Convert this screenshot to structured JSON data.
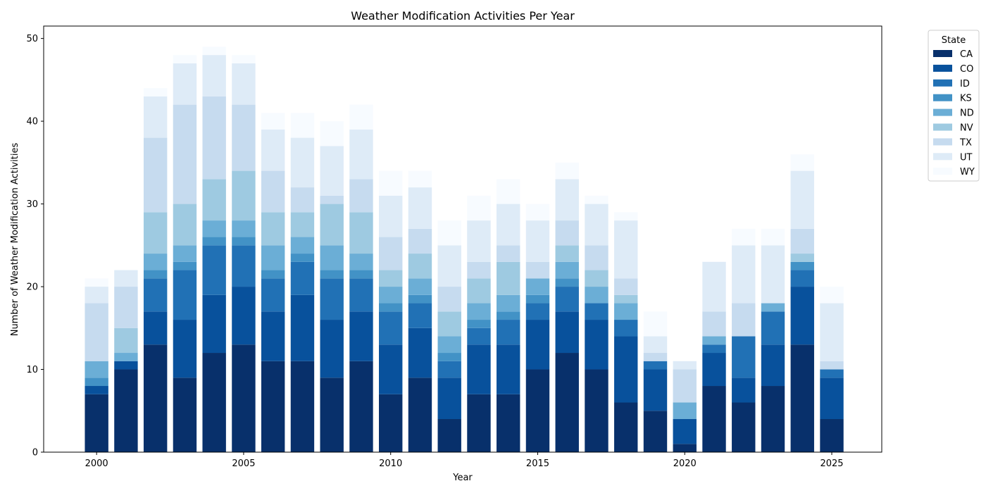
{
  "chart_data": {
    "type": "bar",
    "stacked": true,
    "title": "Weather Modification Activities Per Year",
    "xlabel": "Year",
    "ylabel": "Number of Weather Modification Activities",
    "xlim": [
      1998.2,
      2026.7
    ],
    "ylim": [
      0,
      51.5
    ],
    "xticks": [
      2000,
      2005,
      2010,
      2015,
      2020,
      2025
    ],
    "yticks": [
      0,
      10,
      20,
      30,
      40,
      50
    ],
    "legend_title": "State",
    "legend_position": "outside-top-right",
    "categories": [
      2000,
      2001,
      2002,
      2003,
      2004,
      2005,
      2006,
      2007,
      2008,
      2009,
      2010,
      2011,
      2012,
      2013,
      2014,
      2015,
      2016,
      2017,
      2018,
      2019,
      2020,
      2021,
      2022,
      2023,
      2024,
      2025
    ],
    "series": [
      {
        "name": "CA",
        "color": "#08306b",
        "values": [
          7,
          10,
          13,
          9,
          12,
          13,
          11,
          11,
          9,
          11,
          7,
          9,
          4,
          7,
          7,
          10,
          12,
          10,
          6,
          5,
          1,
          8,
          6,
          8,
          13,
          4
        ]
      },
      {
        "name": "CO",
        "color": "#08519c",
        "values": [
          1,
          1,
          4,
          7,
          7,
          7,
          6,
          8,
          7,
          6,
          6,
          6,
          5,
          6,
          6,
          6,
          5,
          6,
          8,
          5,
          3,
          4,
          3,
          5,
          7,
          5
        ]
      },
      {
        "name": "ID",
        "color": "#2171b5",
        "values": [
          0,
          0,
          4,
          6,
          6,
          5,
          4,
          4,
          5,
          4,
          4,
          3,
          2,
          2,
          3,
          2,
          3,
          2,
          2,
          1,
          0,
          1,
          5,
          4,
          2,
          1
        ]
      },
      {
        "name": "KS",
        "color": "#4292c6",
        "values": [
          1,
          0,
          1,
          1,
          1,
          1,
          1,
          1,
          1,
          1,
          1,
          1,
          1,
          1,
          1,
          1,
          1,
          0,
          0,
          0,
          0,
          0,
          0,
          0,
          1,
          0
        ]
      },
      {
        "name": "ND",
        "color": "#6baed6",
        "values": [
          2,
          1,
          2,
          2,
          2,
          2,
          3,
          2,
          3,
          2,
          2,
          2,
          2,
          2,
          2,
          2,
          2,
          2,
          2,
          0,
          2,
          1,
          0,
          1,
          0,
          0
        ]
      },
      {
        "name": "NV",
        "color": "#9ecae1",
        "values": [
          0,
          3,
          5,
          5,
          5,
          6,
          4,
          3,
          5,
          5,
          2,
          3,
          3,
          3,
          4,
          0,
          2,
          2,
          1,
          0,
          0,
          0,
          0,
          0,
          1,
          0
        ]
      },
      {
        "name": "TX",
        "color": "#c6dbef",
        "values": [
          7,
          5,
          9,
          12,
          10,
          8,
          5,
          3,
          1,
          4,
          4,
          3,
          3,
          2,
          2,
          2,
          3,
          3,
          2,
          1,
          4,
          3,
          4,
          0,
          3,
          1
        ]
      },
      {
        "name": "UT",
        "color": "#deebf7",
        "values": [
          2,
          2,
          5,
          5,
          5,
          5,
          5,
          6,
          6,
          6,
          5,
          5,
          5,
          5,
          5,
          5,
          5,
          5,
          7,
          2,
          1,
          6,
          7,
          7,
          7,
          7
        ]
      },
      {
        "name": "WY",
        "color": "#f7fbff",
        "values": [
          1,
          0,
          1,
          1,
          1,
          1,
          2,
          3,
          3,
          3,
          3,
          2,
          3,
          3,
          3,
          2,
          2,
          1,
          1,
          3,
          0,
          0,
          2,
          2,
          2,
          2
        ]
      }
    ]
  }
}
